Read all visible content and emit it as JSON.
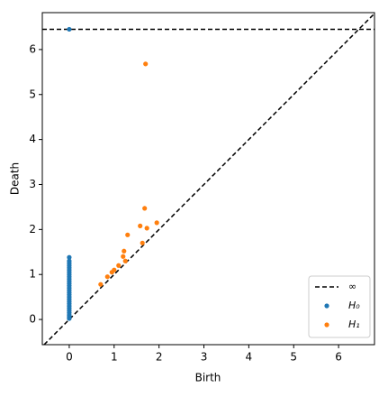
{
  "chart_data": {
    "type": "scatter",
    "x_label": "Birth",
    "y_label": "Death",
    "xlim": [
      -0.6,
      6.8
    ],
    "ylim": [
      -0.56,
      6.82
    ],
    "xticks": [
      0,
      1,
      2,
      3,
      4,
      5,
      6
    ],
    "yticks": [
      0,
      1,
      2,
      3,
      4,
      5,
      6
    ],
    "inf_line": {
      "name": "∞",
      "value": 6.45,
      "color": "#000000"
    },
    "legend_position": "lower right",
    "series": [
      {
        "name": "H₀",
        "color": "#1f77b4",
        "x": [
          0,
          0,
          0,
          0,
          0,
          0,
          0,
          0,
          0,
          0,
          0,
          0,
          0,
          0,
          0,
          0,
          0,
          0,
          0,
          0,
          0,
          0,
          0,
          0,
          0,
          0,
          0,
          0,
          0
        ],
        "y": [
          0.02,
          0.06,
          0.1,
          0.15,
          0.2,
          0.25,
          0.3,
          0.35,
          0.4,
          0.45,
          0.5,
          0.55,
          0.6,
          0.65,
          0.7,
          0.75,
          0.8,
          0.85,
          0.9,
          0.95,
          1.0,
          1.05,
          1.1,
          1.15,
          1.2,
          1.25,
          1.3,
          1.38,
          6.45
        ]
      },
      {
        "name": "H₁",
        "color": "#ff7f0e",
        "x": [
          0.7,
          0.85,
          0.95,
          1.0,
          1.1,
          1.2,
          1.22,
          1.25,
          1.3,
          1.58,
          1.63,
          1.68,
          1.73,
          1.95,
          1.7
        ],
        "y": [
          0.78,
          0.95,
          1.05,
          1.1,
          1.2,
          1.4,
          1.52,
          1.3,
          1.88,
          2.08,
          1.7,
          2.47,
          2.03,
          2.15,
          5.68
        ]
      }
    ]
  }
}
